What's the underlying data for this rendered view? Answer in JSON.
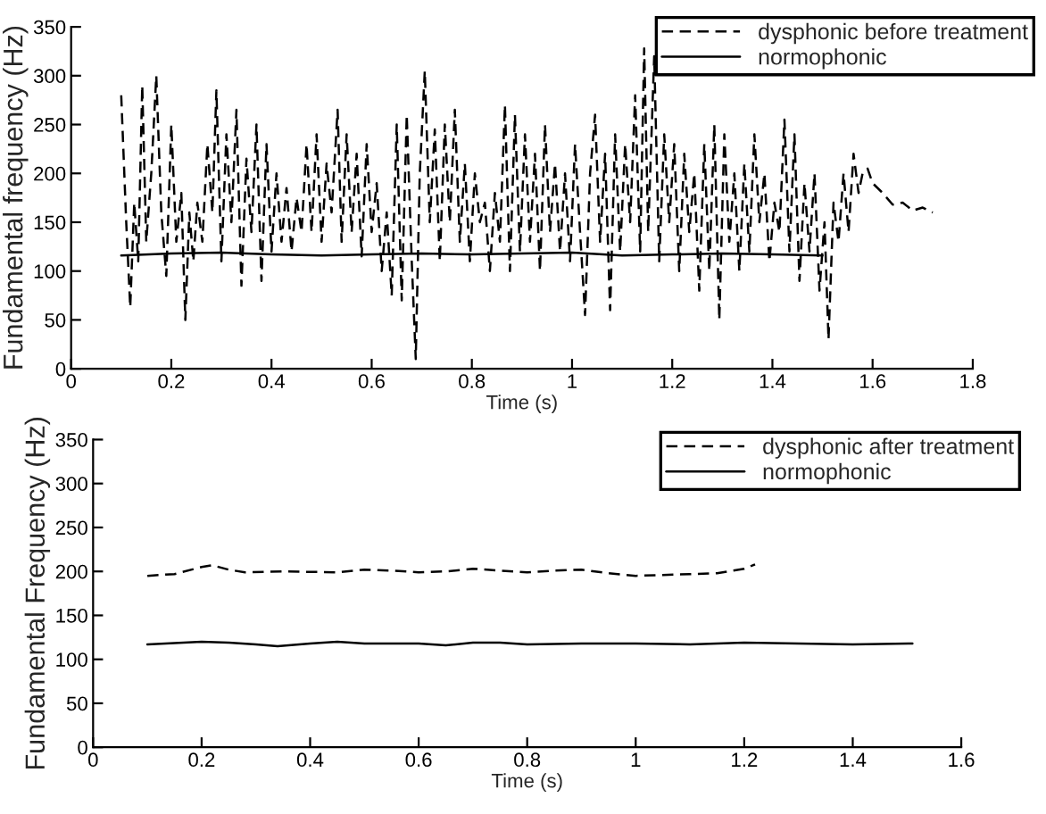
{
  "chart_data": [
    {
      "type": "line",
      "xlabel": "Time (s)",
      "ylabel": "Fundamental frequency (Hz)",
      "xlim": [
        0,
        1.8
      ],
      "ylim": [
        0,
        350
      ],
      "xticks": [
        0,
        0.2,
        0.4,
        0.6,
        0.8,
        1,
        1.2,
        1.4,
        1.6,
        1.8
      ],
      "yticks": [
        0,
        50,
        100,
        150,
        200,
        250,
        300,
        350
      ],
      "legend": "top right",
      "grid": false,
      "series": [
        {
          "name": "dysphonic before treatment",
          "color": "#000000",
          "line_style": "dashed",
          "x": [
            0.1,
            0.11,
            0.118,
            0.126,
            0.134,
            0.142,
            0.15,
            0.16,
            0.17,
            0.18,
            0.19,
            0.2,
            0.21,
            0.22,
            0.228,
            0.236,
            0.244,
            0.252,
            0.262,
            0.272,
            0.282,
            0.29,
            0.3,
            0.31,
            0.32,
            0.33,
            0.34,
            0.35,
            0.36,
            0.37,
            0.38,
            0.39,
            0.4,
            0.41,
            0.42,
            0.43,
            0.44,
            0.45,
            0.46,
            0.47,
            0.48,
            0.49,
            0.5,
            0.51,
            0.52,
            0.532,
            0.54,
            0.55,
            0.56,
            0.57,
            0.58,
            0.59,
            0.6,
            0.61,
            0.62,
            0.63,
            0.64,
            0.65,
            0.66,
            0.67,
            0.68,
            0.688,
            0.696,
            0.706,
            0.716,
            0.726,
            0.736,
            0.746,
            0.756,
            0.766,
            0.776,
            0.786,
            0.796,
            0.806,
            0.816,
            0.826,
            0.836,
            0.846,
            0.856,
            0.866,
            0.876,
            0.886,
            0.896,
            0.906,
            0.916,
            0.926,
            0.936,
            0.946,
            0.956,
            0.966,
            0.976,
            0.986,
            0.996,
            1.006,
            1.016,
            1.026,
            1.036,
            1.046,
            1.056,
            1.066,
            1.076,
            1.086,
            1.096,
            1.106,
            1.116,
            1.126,
            1.136,
            1.144,
            1.152,
            1.164,
            1.174,
            1.184,
            1.194,
            1.204,
            1.214,
            1.224,
            1.234,
            1.244,
            1.254,
            1.264,
            1.274,
            1.284,
            1.294,
            1.304,
            1.314,
            1.324,
            1.334,
            1.344,
            1.354,
            1.364,
            1.374,
            1.384,
            1.394,
            1.404,
            1.414,
            1.424,
            1.434,
            1.444,
            1.454,
            1.464,
            1.474,
            1.484,
            1.494,
            1.504,
            1.512,
            1.522,
            1.532,
            1.542,
            1.552,
            1.562,
            1.572,
            1.58,
            1.59,
            1.6,
            1.62,
            1.64,
            1.66,
            1.68,
            1.7,
            1.72
          ],
          "values": [
            280,
            150,
            63,
            170,
            110,
            290,
            130,
            200,
            300,
            160,
            95,
            250,
            130,
            180,
            50,
            160,
            110,
            170,
            130,
            230,
            160,
            285,
            110,
            240,
            150,
            265,
            85,
            215,
            140,
            250,
            90,
            230,
            120,
            200,
            130,
            185,
            120,
            175,
            140,
            230,
            140,
            240,
            130,
            210,
            160,
            265,
            130,
            240,
            140,
            220,
            115,
            230,
            140,
            190,
            100,
            160,
            75,
            250,
            70,
            260,
            110,
            10,
            200,
            305,
            150,
            245,
            110,
            250,
            150,
            265,
            130,
            210,
            110,
            200,
            150,
            170,
            100,
            180,
            130,
            270,
            100,
            260,
            120,
            240,
            130,
            220,
            100,
            250,
            140,
            210,
            120,
            200,
            110,
            230,
            140,
            55,
            200,
            260,
            130,
            220,
            60,
            240,
            120,
            230,
            150,
            280,
            120,
            328,
            140,
            320,
            110,
            240,
            150,
            230,
            100,
            220,
            140,
            200,
            80,
            230,
            100,
            250,
            50,
            240,
            130,
            200,
            100,
            210,
            120,
            240,
            150,
            200,
            110,
            170,
            140,
            255,
            120,
            240,
            90,
            190,
            120,
            200,
            80,
            150,
            30,
            170,
            130,
            200,
            140,
            220,
            180,
            200,
            205,
            190,
            180,
            168,
            170,
            162,
            165,
            160
          ]
        },
        {
          "name": "normophonic",
          "color": "#000000",
          "line_style": "solid",
          "x": [
            0.1,
            0.2,
            0.3,
            0.4,
            0.5,
            0.6,
            0.7,
            0.8,
            0.9,
            1.0,
            1.1,
            1.2,
            1.3,
            1.4,
            1.5
          ],
          "values": [
            116,
            118,
            119,
            117,
            116,
            117,
            118,
            117,
            118,
            119,
            116,
            117,
            118,
            117,
            116
          ]
        }
      ]
    },
    {
      "type": "line",
      "xlabel": "Time (s)",
      "ylabel": "Fundamental Frequency (Hz)",
      "xlim": [
        0,
        1.6
      ],
      "ylim": [
        0,
        350
      ],
      "xticks": [
        0,
        0.2,
        0.4,
        0.6,
        0.8,
        1,
        1.2,
        1.4,
        1.6
      ],
      "yticks": [
        0,
        50,
        100,
        150,
        200,
        250,
        300,
        350
      ],
      "legend": "top right",
      "grid": false,
      "series": [
        {
          "name": "dysphonic after treatment",
          "color": "#000000",
          "line_style": "dashed",
          "x": [
            0.1,
            0.15,
            0.2,
            0.22,
            0.25,
            0.28,
            0.35,
            0.45,
            0.5,
            0.55,
            0.6,
            0.65,
            0.7,
            0.75,
            0.8,
            0.85,
            0.9,
            0.95,
            1.0,
            1.05,
            1.1,
            1.15,
            1.2,
            1.22
          ],
          "values": [
            195,
            197,
            205,
            207,
            202,
            199,
            200,
            199,
            202,
            201,
            199,
            200,
            203,
            201,
            199,
            201,
            202,
            198,
            195,
            196,
            197,
            198,
            203,
            208
          ]
        },
        {
          "name": "normophonic",
          "color": "#000000",
          "line_style": "solid",
          "x": [
            0.1,
            0.2,
            0.25,
            0.3,
            0.34,
            0.4,
            0.45,
            0.5,
            0.6,
            0.65,
            0.7,
            0.75,
            0.8,
            0.9,
            1.0,
            1.1,
            1.2,
            1.3,
            1.4,
            1.51
          ],
          "values": [
            117,
            120,
            119,
            117,
            115,
            118,
            120,
            118,
            118,
            116,
            119,
            119,
            117,
            118,
            118,
            117,
            119,
            118,
            117,
            118
          ]
        }
      ]
    }
  ]
}
